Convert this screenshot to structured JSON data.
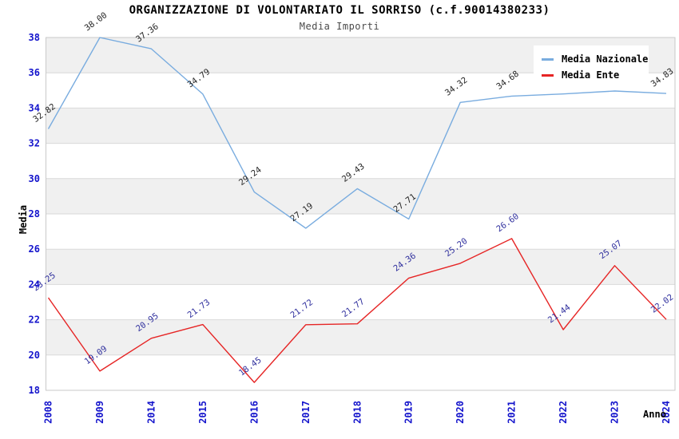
{
  "chart_data": {
    "type": "line",
    "title": "ORGANIZZAZIONE DI VOLONTARIATO IL SORRISO (c.f.90014380233)",
    "subtitle": "Media Importi",
    "xlabel": "Anno",
    "ylabel": "Media",
    "categories": [
      "2008",
      "2009",
      "2014",
      "2015",
      "2016",
      "2017",
      "2018",
      "2019",
      "2020",
      "2021",
      "2022",
      "2023",
      "2024"
    ],
    "series": [
      {
        "name": "Media Nazionale",
        "color": "#79acdf",
        "label_color": "#262626",
        "values": [
          32.82,
          38.0,
          37.36,
          34.79,
          29.24,
          27.19,
          29.43,
          27.71,
          34.32,
          34.68,
          34.8,
          34.97,
          34.83
        ]
      },
      {
        "name": "Media Ente",
        "color": "#e62525",
        "label_color": "#30309e",
        "values": [
          23.25,
          19.09,
          20.95,
          21.73,
          18.45,
          21.72,
          21.77,
          24.36,
          25.2,
          26.6,
          21.44,
          25.07,
          22.02
        ]
      }
    ],
    "ylim": [
      18,
      38
    ],
    "ytick_step": 2,
    "y_ticks": [
      38,
      36,
      34,
      32,
      30,
      28,
      26,
      24,
      22,
      20,
      18
    ],
    "grid": true,
    "band_fill_ranges": [
      [
        36,
        38
      ],
      [
        32,
        34
      ],
      [
        28,
        30
      ],
      [
        24,
        26
      ],
      [
        20,
        22
      ]
    ],
    "legend_position": "top-right",
    "data_label_format": "0.00",
    "data_label_rotation_deg": -36
  },
  "colors": {
    "band_gray": "#f0f0f0",
    "grid_line": "#d9d9d9",
    "plot_border": "#c9c9c9",
    "tick_label": "#1414cc",
    "title": "#000000",
    "subtitle": "#4a4a4a",
    "background": "#ffffff"
  }
}
